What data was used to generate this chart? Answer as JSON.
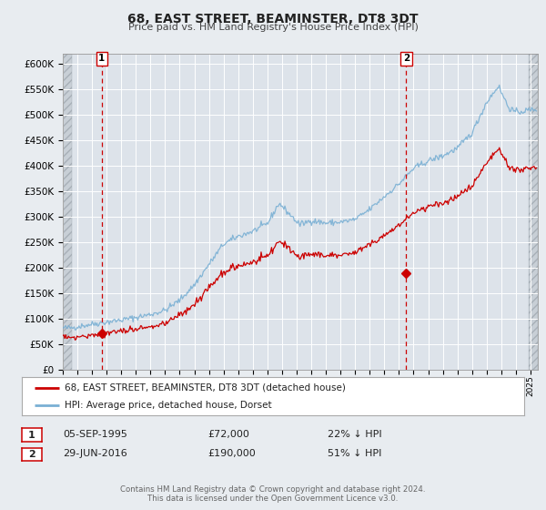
{
  "title": "68, EAST STREET, BEAMINSTER, DT8 3DT",
  "subtitle": "Price paid vs. HM Land Registry's House Price Index (HPI)",
  "bg_color": "#e8ecf0",
  "plot_bg_color": "#dde3ea",
  "grid_color": "#ffffff",
  "hatch_color": "#c8cfd6",
  "red_line_color": "#cc0000",
  "blue_line_color": "#7ab0d4",
  "legend_label_red": "68, EAST STREET, BEAMINSTER, DT8 3DT (detached house)",
  "legend_label_blue": "HPI: Average price, detached house, Dorset",
  "marker1_date": 1995.67,
  "marker1_value": 72000,
  "marker1_label": "1",
  "marker2_date": 2016.49,
  "marker2_value": 190000,
  "marker2_label": "2",
  "table_rows": [
    [
      "1",
      "05-SEP-1995",
      "£72,000",
      "22% ↓ HPI"
    ],
    [
      "2",
      "29-JUN-2016",
      "£190,000",
      "51% ↓ HPI"
    ]
  ],
  "footer_line1": "Contains HM Land Registry data © Crown copyright and database right 2024.",
  "footer_line2": "This data is licensed under the Open Government Licence v3.0.",
  "ylim": [
    0,
    620000
  ],
  "yticks": [
    0,
    50000,
    100000,
    150000,
    200000,
    250000,
    300000,
    350000,
    400000,
    450000,
    500000,
    550000,
    600000
  ],
  "xlim_start": 1993.0,
  "xlim_end": 2025.5
}
